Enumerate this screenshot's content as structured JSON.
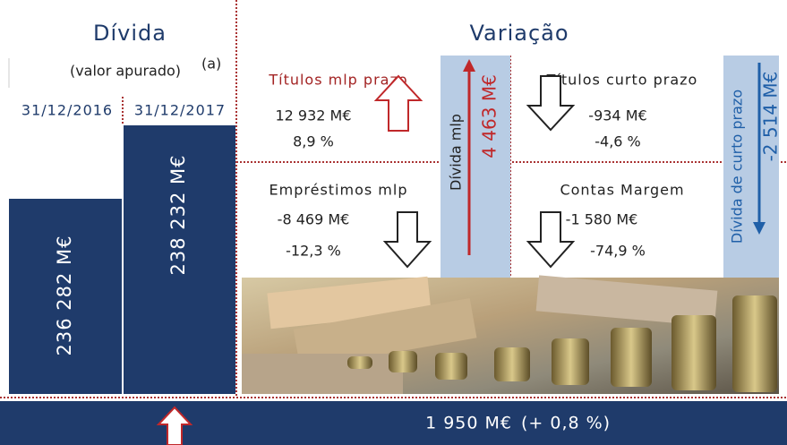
{
  "left": {
    "title": "Dívida",
    "subtitle": "(valor apurado)",
    "note_marker": "(a)",
    "dates": [
      "31/12/2016",
      "31/12/2017"
    ],
    "values": [
      "236 282 M€",
      "238 232 M€"
    ]
  },
  "right": {
    "title": "Variação",
    "quadrants": [
      {
        "label": "Títulos mlp prazo",
        "amount": "12 932 M€",
        "percent": "8,9 %"
      },
      {
        "label": "Títulos curto prazo",
        "amount": "-934 M€",
        "percent": "-4,6 %"
      },
      {
        "label": "Empréstimos mlp",
        "amount": "-8 469 M€",
        "percent": "-12,3 %"
      },
      {
        "label": "Contas Margem",
        "amount": "-1 580 M€",
        "percent": "-74,9 %"
      }
    ],
    "columns": [
      {
        "label": "Dívida mlp",
        "amount": "4 463 M€"
      },
      {
        "label": "Dívida de curto prazo",
        "amount": "-2 514 M€"
      }
    ]
  },
  "footer": {
    "amount": "1 950 M€",
    "percent": "(+ 0,8 %)"
  }
}
